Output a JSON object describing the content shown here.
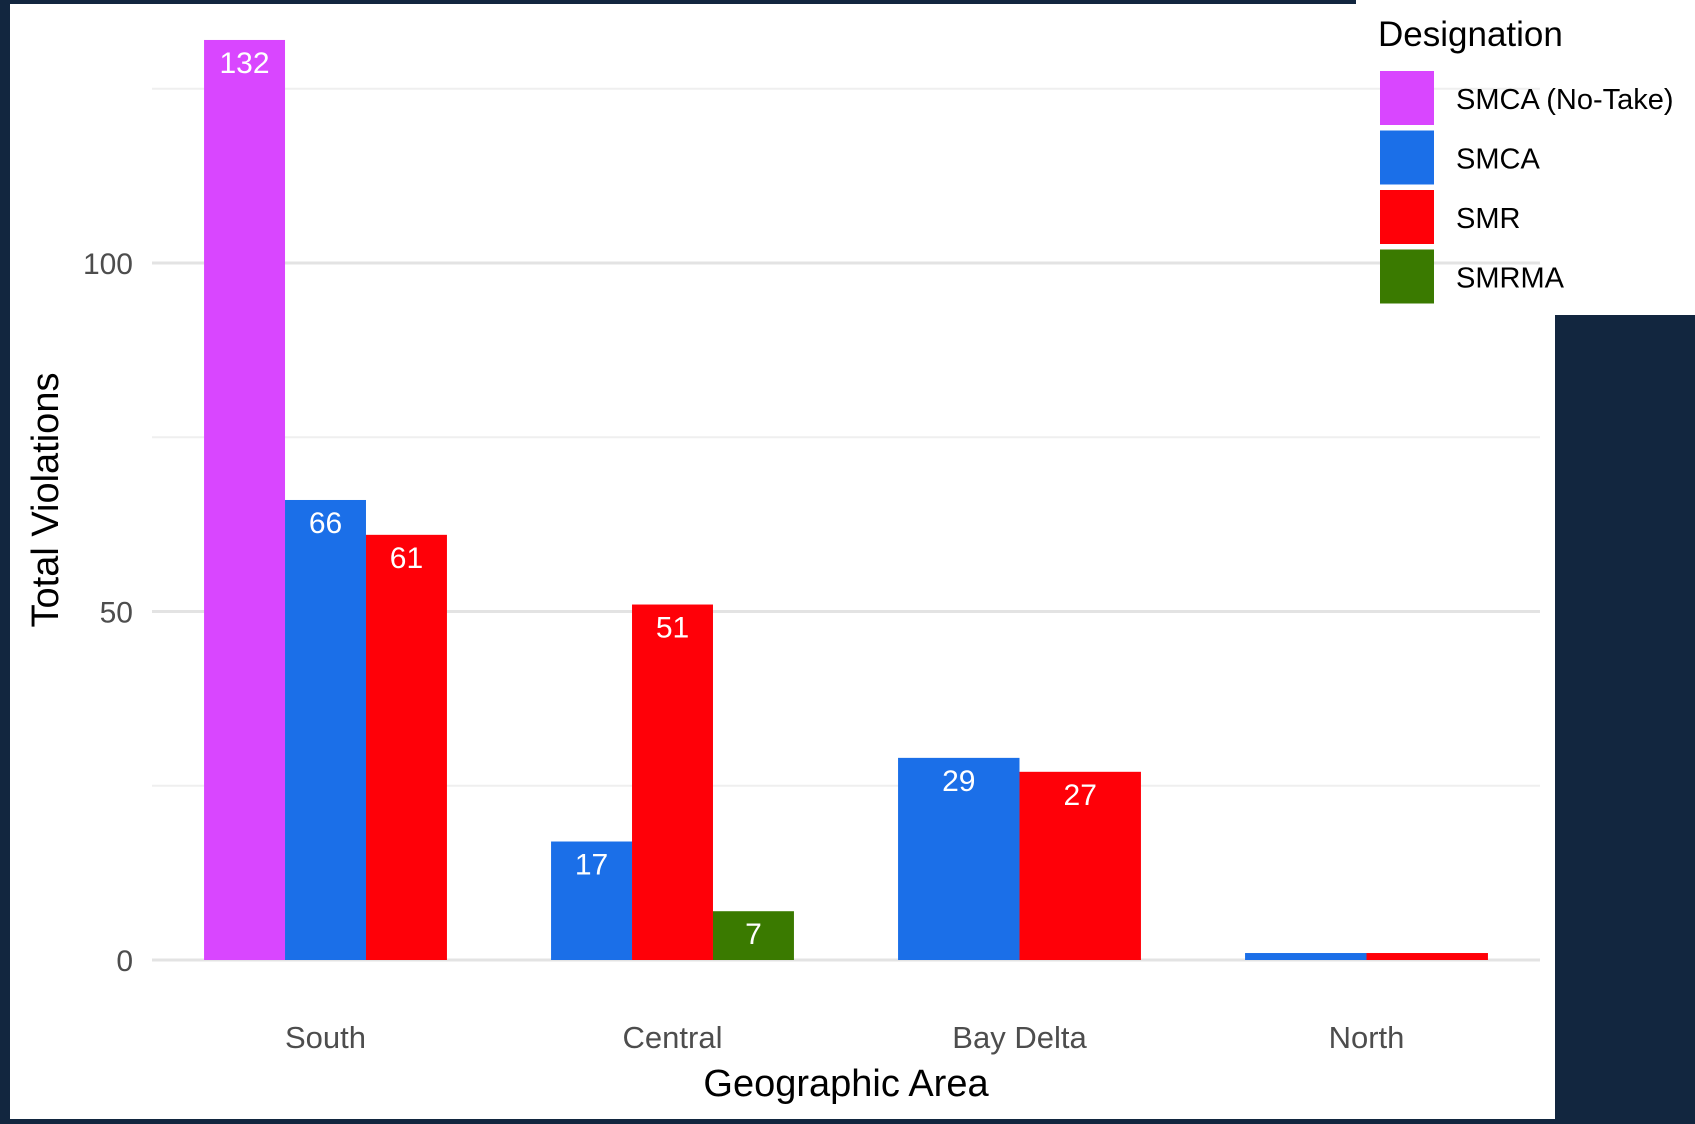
{
  "chart_data": {
    "type": "bar",
    "title": "",
    "xlabel": "Geographic Area",
    "ylabel": "Total Violations",
    "ylim": [
      0,
      133
    ],
    "yticks": [
      0,
      50,
      100
    ],
    "grid": true,
    "categories": [
      "South",
      "Central",
      "Bay Delta",
      "North"
    ],
    "legend": {
      "title": "Designation",
      "placement": "top-right"
    },
    "series": [
      {
        "name": "SMCA (No-Take)",
        "color": "#d946ff",
        "values": [
          132,
          null,
          null,
          null
        ]
      },
      {
        "name": "SMCA",
        "color": "#1b6fe8",
        "values": [
          66,
          17,
          29,
          1
        ]
      },
      {
        "name": "SMR",
        "color": "#ff0008",
        "values": [
          61,
          51,
          27,
          1
        ]
      },
      {
        "name": "SMRMA",
        "color": "#3a7a00",
        "values": [
          null,
          7,
          null,
          null
        ]
      }
    ],
    "data_labels": true
  }
}
